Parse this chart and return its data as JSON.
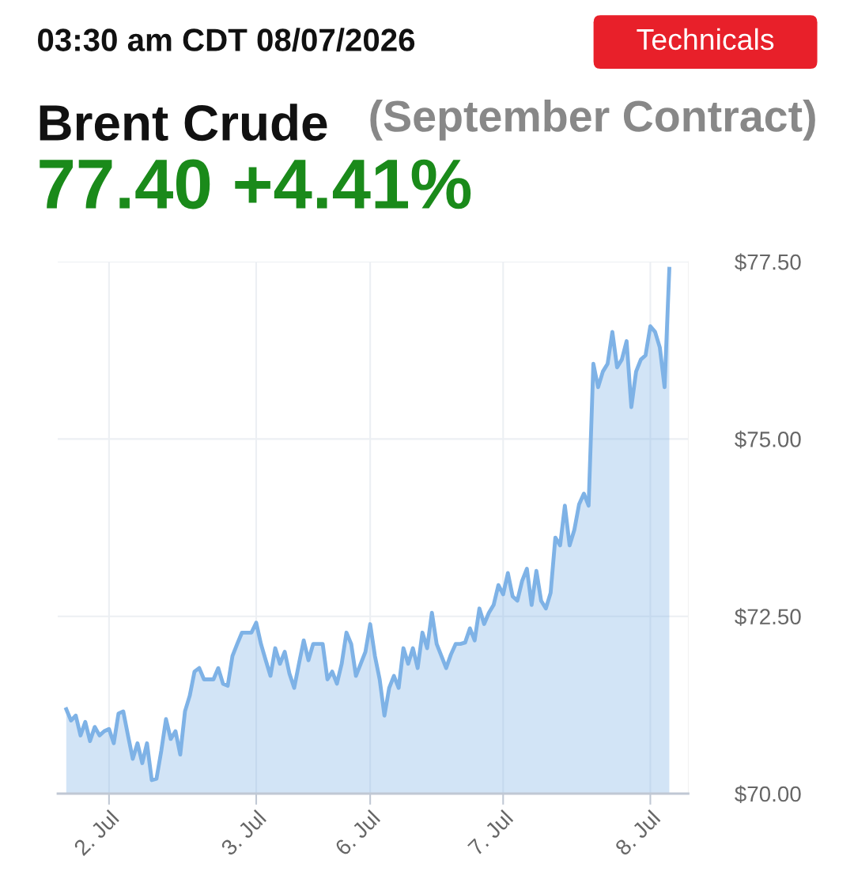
{
  "chart_data": {
    "type": "area",
    "title": "Brent Crude",
    "subtitle": "(September Contract)",
    "annotations": [
      "03:30 am CDT 08/07/2026",
      "77.40 +4.41%",
      "Technicals"
    ],
    "ylim": [
      70,
      77.5
    ],
    "categories": [
      null,
      null,
      null,
      null,
      null,
      null,
      null,
      null,
      null,
      "2. Jul",
      null,
      null,
      null,
      null,
      null,
      null,
      null,
      null,
      null,
      null,
      null,
      null,
      null,
      null,
      null,
      null,
      null,
      null,
      null,
      null,
      null,
      null,
      null,
      null,
      null,
      null,
      null,
      null,
      null,
      null,
      "3. Jul",
      null,
      null,
      null,
      null,
      null,
      null,
      null,
      null,
      null,
      null,
      null,
      null,
      null,
      null,
      null,
      null,
      null,
      null,
      null,
      null,
      null,
      null,
      null,
      "6. Jul",
      null,
      null,
      null,
      null,
      null,
      null,
      null,
      null,
      null,
      null,
      null,
      null,
      null,
      null,
      null,
      null,
      null,
      null,
      null,
      null,
      null,
      null,
      null,
      null,
      null,
      null,
      null,
      "7. Jul",
      null,
      null,
      null,
      null,
      null,
      null,
      null,
      null,
      null,
      null,
      null,
      null,
      null,
      null,
      null,
      null,
      null,
      null,
      null,
      null,
      null,
      null,
      null,
      null,
      null,
      null,
      null,
      null,
      null,
      null,
      "8. Jul",
      null,
      null,
      null,
      null
    ],
    "yticks": [
      {
        "value": 70,
        "label": "$70.00"
      },
      {
        "value": 72.5,
        "label": "$72.50"
      },
      {
        "value": 75,
        "label": "$75.00"
      },
      {
        "value": 77.5,
        "label": "$77.50"
      }
    ],
    "grid": true,
    "marker": "none",
    "line_style": "solid",
    "series": [
      {
        "color": "#7eb2e6",
        "values": [
          71.19,
          71.03,
          71.1,
          70.82,
          71.01,
          70.74,
          70.94,
          70.82,
          70.88,
          70.91,
          70.71,
          71.13,
          71.16,
          70.82,
          70.49,
          70.71,
          70.43,
          70.71,
          70.19,
          70.21,
          70.6,
          71.05,
          70.77,
          70.88,
          70.55,
          71.16,
          71.38,
          71.72,
          71.77,
          71.61,
          71.61,
          71.61,
          71.77,
          71.55,
          71.52,
          71.94,
          72.11,
          72.27,
          72.27,
          72.27,
          72.41,
          72.11,
          71.88,
          71.66,
          72.05,
          71.83,
          72.0,
          71.69,
          71.49,
          71.83,
          72.16,
          71.88,
          72.11,
          72.11,
          72.11,
          71.61,
          71.72,
          71.55,
          71.83,
          72.27,
          72.11,
          71.66,
          71.83,
          72.0,
          72.39,
          71.94,
          71.61,
          71.1,
          71.49,
          71.66,
          71.49,
          72.05,
          71.83,
          72.05,
          71.77,
          72.27,
          72.05,
          72.55,
          72.11,
          71.94,
          71.77,
          71.96,
          72.11,
          72.11,
          72.13,
          72.33,
          72.16,
          72.61,
          72.39,
          72.55,
          72.66,
          72.94,
          72.81,
          73.11,
          72.78,
          72.72,
          73.0,
          73.17,
          72.66,
          73.14,
          72.72,
          72.61,
          72.83,
          73.61,
          73.5,
          74.06,
          73.5,
          73.72,
          74.08,
          74.23,
          74.06,
          76.06,
          75.73,
          75.95,
          76.06,
          76.51,
          76.01,
          76.12,
          76.38,
          75.45,
          75.95,
          76.12,
          76.18,
          76.59,
          76.51,
          76.29,
          75.73,
          77.4
        ]
      }
    ]
  }
}
